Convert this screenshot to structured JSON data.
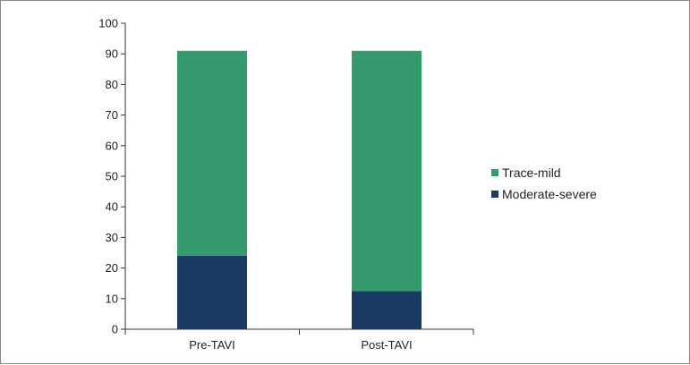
{
  "chart_data": {
    "type": "bar",
    "stacked": true,
    "categories": [
      "Pre-TAVI",
      "Post-TAVI"
    ],
    "series": [
      {
        "name": "Moderate-severe",
        "values": [
          24,
          12.5
        ],
        "color": "#1a3a64"
      },
      {
        "name": "Trace-mild",
        "values": [
          67,
          78.5
        ],
        "color": "#339b6c"
      }
    ],
    "title": "",
    "xlabel": "",
    "ylabel": "",
    "ylim": [
      0,
      100
    ],
    "yticks": [
      0,
      10,
      20,
      30,
      40,
      50,
      60,
      70,
      80,
      90,
      100
    ],
    "grid": false,
    "legend": {
      "placement": "right",
      "order": [
        "Trace-mild",
        "Moderate-severe"
      ]
    }
  }
}
